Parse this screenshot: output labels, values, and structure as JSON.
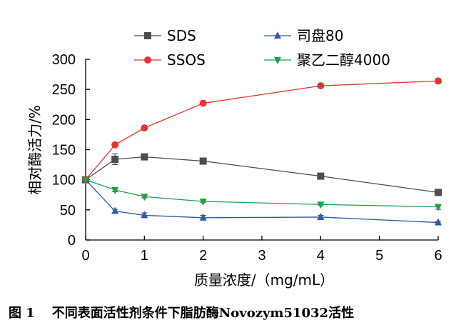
{
  "chart_data": {
    "type": "line",
    "title": "",
    "xlabel": "质量浓度/（mg/mL）",
    "ylabel": "相对酶活力/%",
    "xlim": [
      0,
      6
    ],
    "ylim": [
      0,
      300
    ],
    "xticks": [
      0,
      1,
      2,
      3,
      4,
      5,
      6
    ],
    "yticks": [
      0,
      50,
      100,
      150,
      200,
      250,
      300
    ],
    "legend_position": "top",
    "series": [
      {
        "name": "SDS",
        "color": "#4d4d4d",
        "marker": "square",
        "x": [
          0,
          0.5,
          1,
          2,
          4,
          6
        ],
        "y": [
          100,
          134,
          138,
          131,
          106,
          79
        ],
        "err": [
          0,
          9,
          2,
          2,
          2,
          3
        ]
      },
      {
        "name": "SSOS",
        "color": "#e8332e",
        "marker": "circle",
        "x": [
          0,
          0.5,
          1,
          2,
          4,
          6
        ],
        "y": [
          100,
          158,
          186,
          227,
          256,
          264
        ],
        "err": [
          0,
          2,
          3,
          2,
          2,
          4
        ]
      },
      {
        "name": "司盘80",
        "color": "#2d5aa8",
        "marker": "triangle-up",
        "x": [
          0,
          0.5,
          1,
          2,
          4,
          6
        ],
        "y": [
          100,
          48,
          41,
          37,
          38,
          29
        ],
        "err": [
          0,
          3,
          4,
          4,
          3,
          2
        ]
      },
      {
        "name": "聚乙二醇4000",
        "color": "#1fa14a",
        "marker": "triangle-down",
        "x": [
          0,
          0.5,
          1,
          2,
          4,
          6
        ],
        "y": [
          100,
          83,
          72,
          64,
          59,
          55
        ],
        "err": [
          0,
          3,
          2,
          2,
          2,
          4
        ]
      }
    ]
  },
  "caption": {
    "figure_number": "图 1",
    "text": "不同表面活性剂条件下脂肪酶Novozym51032活性"
  }
}
